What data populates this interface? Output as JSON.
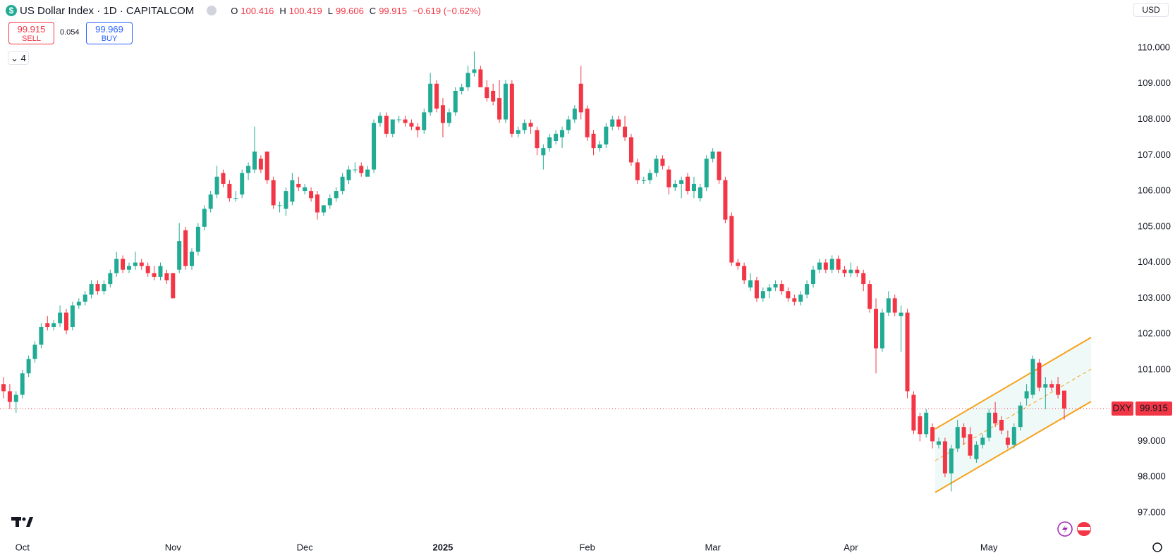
{
  "chart_data": {
    "type": "candlestick",
    "title": "US Dollar Index · 1D · CAPITALCOM",
    "symbol": "DXY",
    "currency": "USD",
    "indicator_count": "4",
    "header": {
      "open_label": "O",
      "open": "100.416",
      "high_label": "H",
      "high": "100.419",
      "low_label": "L",
      "low": "99.606",
      "close_label": "C",
      "close": "99.915",
      "change": "−0.619 (−0.62%)"
    },
    "trade": {
      "sell": 99.915,
      "sell_label": "SELL",
      "spread": 0.054,
      "buy": 99.969,
      "buy_label": "BUY"
    },
    "up_color": "#22ab94",
    "down_color": "#f23645",
    "ylim": [
      96.37,
      111.34
    ],
    "yticks": [
      {
        "value": 97,
        "label": "97.000"
      },
      {
        "value": 98,
        "label": "98.000"
      },
      {
        "value": 99,
        "label": "99.000"
      },
      {
        "value": 100,
        "label": "100.000"
      },
      {
        "value": 101,
        "label": "101.000"
      },
      {
        "value": 102,
        "label": "102.000"
      },
      {
        "value": 103,
        "label": "103.000"
      },
      {
        "value": 104,
        "label": "104.000"
      },
      {
        "value": 105,
        "label": "105.000"
      },
      {
        "value": 106,
        "label": "106.000"
      },
      {
        "value": 107,
        "label": "107.000"
      },
      {
        "value": 108,
        "label": "108.000"
      },
      {
        "value": 109,
        "label": "109.000"
      },
      {
        "value": 110,
        "label": "110.000"
      }
    ],
    "grid": false,
    "categories": [
      null,
      null,
      null,
      "Oct",
      null,
      null,
      null,
      null,
      null,
      null,
      null,
      null,
      null,
      null,
      null,
      null,
      null,
      null,
      null,
      null,
      null,
      null,
      null,
      null,
      null,
      null,
      null,
      "Nov",
      null,
      null,
      null,
      null,
      null,
      null,
      null,
      null,
      null,
      null,
      null,
      null,
      null,
      null,
      null,
      null,
      null,
      null,
      null,
      null,
      "Dec",
      null,
      null,
      null,
      null,
      null,
      null,
      null,
      null,
      null,
      null,
      null,
      null,
      null,
      null,
      null,
      null,
      null,
      null,
      null,
      null,
      null,
      "2025",
      null,
      null,
      null,
      null,
      null,
      null,
      null,
      null,
      null,
      null,
      null,
      null,
      null,
      null,
      null,
      null,
      null,
      null,
      null,
      null,
      null,
      null,
      "Feb",
      null,
      null,
      null,
      null,
      null,
      null,
      null,
      null,
      null,
      null,
      null,
      null,
      null,
      null,
      null,
      null,
      null,
      null,
      null,
      "Mar",
      null,
      null,
      null,
      null,
      null,
      null,
      null,
      null,
      null,
      null,
      null,
      null,
      null,
      null,
      null,
      null,
      null,
      null,
      null,
      null,
      null,
      "Apr",
      null,
      null,
      null,
      null,
      null,
      null,
      null,
      null,
      null,
      null,
      null,
      null,
      null,
      null,
      null,
      null,
      null,
      null,
      null,
      null,
      null,
      "May",
      null,
      null,
      null,
      null,
      null,
      null,
      null,
      null,
      null,
      null,
      null,
      null
    ],
    "ohlc": [
      [
        100.6,
        100.8,
        100.2,
        100.4
      ],
      [
        100.4,
        100.6,
        99.9,
        100.1
      ],
      [
        100.1,
        100.4,
        99.8,
        100.3
      ],
      [
        100.3,
        101.0,
        100.2,
        100.9
      ],
      [
        100.9,
        101.4,
        100.8,
        101.3
      ],
      [
        101.3,
        101.8,
        101.2,
        101.7
      ],
      [
        101.7,
        102.3,
        101.6,
        102.2
      ],
      [
        102.3,
        102.5,
        102.1,
        102.2
      ],
      [
        102.2,
        102.4,
        102.1,
        102.3
      ],
      [
        102.3,
        102.8,
        102.2,
        102.6
      ],
      [
        102.6,
        102.7,
        102.0,
        102.1
      ],
      [
        102.2,
        102.9,
        102.1,
        102.8
      ],
      [
        102.8,
        103.0,
        102.7,
        102.9
      ],
      [
        102.9,
        103.2,
        102.8,
        103.1
      ],
      [
        103.1,
        103.5,
        103.0,
        103.4
      ],
      [
        103.4,
        103.5,
        103.1,
        103.2
      ],
      [
        103.2,
        103.5,
        103.1,
        103.4
      ],
      [
        103.4,
        103.8,
        103.3,
        103.7
      ],
      [
        103.7,
        104.3,
        103.6,
        104.1
      ],
      [
        104.1,
        104.2,
        103.7,
        103.8
      ],
      [
        103.8,
        104.0,
        103.7,
        103.9
      ],
      [
        103.9,
        104.3,
        103.8,
        104.0
      ],
      [
        104.0,
        104.1,
        103.8,
        103.9
      ],
      [
        103.9,
        104.0,
        103.6,
        103.7
      ],
      [
        103.7,
        103.9,
        103.5,
        103.6
      ],
      [
        103.6,
        104.0,
        103.5,
        103.9
      ],
      [
        103.7,
        103.8,
        103.4,
        103.5
      ],
      [
        103.7,
        103.7,
        103.0,
        103.0
      ],
      [
        103.8,
        105.1,
        103.7,
        104.6
      ],
      [
        104.9,
        105.0,
        103.8,
        103.9
      ],
      [
        103.9,
        104.4,
        103.8,
        104.3
      ],
      [
        104.3,
        105.1,
        104.2,
        105.0
      ],
      [
        105.0,
        105.6,
        104.9,
        105.5
      ],
      [
        105.5,
        106.0,
        105.4,
        105.9
      ],
      [
        105.9,
        106.7,
        105.8,
        106.4
      ],
      [
        106.5,
        106.6,
        106.1,
        106.2
      ],
      [
        106.2,
        106.3,
        105.7,
        105.8
      ],
      [
        105.8,
        106.0,
        105.7,
        105.8
      ],
      [
        105.9,
        106.6,
        105.8,
        106.5
      ],
      [
        106.5,
        106.8,
        106.3,
        106.7
      ],
      [
        106.6,
        107.8,
        106.5,
        107.1
      ],
      [
        106.9,
        107.0,
        106.5,
        106.6
      ],
      [
        107.1,
        107.1,
        106.2,
        106.3
      ],
      [
        106.3,
        106.4,
        105.5,
        105.6
      ],
      [
        105.6,
        105.7,
        105.4,
        105.6
      ],
      [
        105.5,
        106.1,
        105.3,
        106.0
      ],
      [
        105.7,
        106.5,
        105.6,
        106.3
      ],
      [
        106.2,
        106.4,
        106.0,
        106.1
      ],
      [
        106.0,
        106.2,
        105.9,
        106.1
      ],
      [
        106.0,
        106.1,
        105.7,
        105.8
      ],
      [
        105.9,
        106.0,
        105.2,
        105.4
      ],
      [
        105.4,
        105.6,
        105.3,
        105.6
      ],
      [
        105.6,
        105.9,
        105.5,
        105.8
      ],
      [
        105.8,
        106.1,
        105.7,
        106.0
      ],
      [
        106.0,
        106.5,
        105.9,
        106.4
      ],
      [
        106.3,
        106.7,
        106.2,
        106.6
      ],
      [
        106.6,
        106.8,
        106.5,
        106.6
      ],
      [
        106.7,
        106.8,
        106.4,
        106.5
      ],
      [
        106.4,
        106.7,
        106.4,
        106.6
      ],
      [
        106.6,
        108.0,
        106.5,
        107.9
      ],
      [
        107.9,
        108.2,
        107.8,
        108.1
      ],
      [
        108.1,
        108.2,
        107.5,
        107.6
      ],
      [
        107.6,
        108.0,
        107.5,
        108.0
      ],
      [
        108.0,
        108.1,
        107.9,
        108.0
      ],
      [
        108.0,
        108.1,
        107.8,
        107.9
      ],
      [
        107.9,
        108.0,
        107.7,
        107.8
      ],
      [
        107.8,
        107.9,
        107.5,
        107.7
      ],
      [
        107.7,
        108.3,
        107.6,
        108.2
      ],
      [
        108.2,
        109.3,
        108.1,
        109.0
      ],
      [
        109.0,
        109.1,
        108.2,
        108.3
      ],
      [
        108.4,
        108.6,
        107.5,
        107.9
      ],
      [
        107.9,
        108.3,
        107.8,
        108.2
      ],
      [
        108.2,
        108.9,
        108.1,
        108.8
      ],
      [
        108.8,
        109.0,
        108.7,
        108.9
      ],
      [
        108.9,
        109.5,
        108.8,
        109.3
      ],
      [
        109.3,
        109.9,
        109.2,
        109.4
      ],
      [
        109.4,
        109.5,
        108.9,
        108.9
      ],
      [
        108.9,
        109.1,
        108.5,
        108.6
      ],
      [
        108.8,
        109.0,
        108.4,
        108.5
      ],
      [
        108.6,
        109.1,
        107.9,
        108.0
      ],
      [
        108.0,
        109.1,
        107.9,
        109.0
      ],
      [
        109.0,
        109.1,
        107.5,
        107.6
      ],
      [
        107.6,
        107.8,
        107.5,
        107.7
      ],
      [
        107.7,
        108.0,
        107.6,
        107.9
      ],
      [
        107.9,
        108.0,
        107.6,
        107.8
      ],
      [
        107.7,
        107.8,
        107.0,
        107.2
      ],
      [
        107.0,
        107.3,
        106.6,
        107.2
      ],
      [
        107.2,
        107.6,
        107.1,
        107.5
      ],
      [
        107.4,
        107.7,
        107.3,
        107.6
      ],
      [
        107.5,
        107.8,
        107.2,
        107.7
      ],
      [
        107.7,
        108.1,
        107.6,
        108.0
      ],
      [
        108.0,
        108.4,
        107.9,
        108.3
      ],
      [
        109.0,
        109.5,
        108.0,
        108.2
      ],
      [
        108.3,
        108.4,
        107.4,
        107.5
      ],
      [
        107.6,
        107.7,
        107.0,
        107.2
      ],
      [
        107.2,
        107.4,
        107.1,
        107.3
      ],
      [
        107.3,
        107.9,
        107.2,
        107.8
      ],
      [
        107.8,
        108.1,
        107.7,
        108.0
      ],
      [
        108.0,
        108.1,
        107.7,
        107.8
      ],
      [
        107.8,
        108.1,
        107.4,
        107.5
      ],
      [
        107.5,
        107.6,
        106.7,
        106.8
      ],
      [
        106.8,
        106.9,
        106.2,
        106.3
      ],
      [
        106.3,
        106.4,
        106.2,
        106.3
      ],
      [
        106.3,
        106.6,
        106.2,
        106.5
      ],
      [
        106.5,
        107.0,
        106.4,
        106.9
      ],
      [
        106.9,
        107.0,
        106.6,
        106.7
      ],
      [
        106.6,
        106.7,
        105.9,
        106.1
      ],
      [
        106.1,
        106.3,
        106.0,
        106.2
      ],
      [
        106.2,
        106.4,
        105.8,
        106.3
      ],
      [
        106.4,
        106.5,
        105.9,
        106.0
      ],
      [
        106.0,
        106.4,
        105.8,
        106.2
      ],
      [
        105.8,
        106.2,
        105.7,
        106.1
      ],
      [
        106.1,
        107.0,
        106.0,
        106.9
      ],
      [
        106.9,
        107.2,
        106.8,
        107.1
      ],
      [
        107.1,
        107.1,
        106.2,
        106.3
      ],
      [
        106.3,
        106.4,
        105.1,
        105.2
      ],
      [
        105.3,
        105.4,
        103.9,
        104.0
      ],
      [
        104.0,
        104.1,
        103.8,
        103.9
      ],
      [
        103.9,
        104.0,
        103.4,
        103.5
      ],
      [
        103.3,
        103.7,
        103.2,
        103.5
      ],
      [
        103.5,
        103.6,
        102.9,
        103.0
      ],
      [
        103.0,
        103.3,
        102.9,
        103.2
      ],
      [
        103.2,
        103.4,
        103.0,
        103.3
      ],
      [
        103.3,
        103.5,
        103.2,
        103.4
      ],
      [
        103.4,
        103.5,
        103.1,
        103.2
      ],
      [
        103.2,
        103.3,
        102.9,
        103.0
      ],
      [
        103.0,
        103.1,
        102.8,
        102.9
      ],
      [
        102.9,
        103.2,
        102.8,
        103.1
      ],
      [
        103.1,
        103.5,
        103.0,
        103.4
      ],
      [
        103.4,
        103.9,
        103.3,
        103.8
      ],
      [
        103.8,
        104.1,
        103.7,
        104.0
      ],
      [
        104.0,
        104.1,
        103.7,
        103.8
      ],
      [
        103.8,
        104.2,
        103.7,
        104.1
      ],
      [
        104.1,
        104.2,
        103.7,
        103.8
      ],
      [
        103.8,
        103.9,
        103.6,
        103.7
      ],
      [
        103.7,
        104.0,
        103.6,
        103.8
      ],
      [
        103.8,
        103.9,
        103.6,
        103.7
      ],
      [
        103.7,
        103.8,
        103.2,
        103.4
      ],
      [
        103.4,
        103.5,
        102.6,
        102.7
      ],
      [
        102.7,
        103.0,
        100.9,
        101.6
      ],
      [
        101.6,
        102.7,
        101.5,
        102.6
      ],
      [
        102.6,
        103.2,
        102.5,
        103.0
      ],
      [
        103.0,
        103.1,
        102.5,
        102.6
      ],
      [
        102.5,
        102.8,
        101.5,
        102.6
      ],
      [
        102.6,
        102.7,
        100.2,
        100.4
      ],
      [
        100.3,
        100.4,
        99.2,
        99.3
      ],
      [
        99.7,
        99.8,
        99.0,
        99.2
      ],
      [
        99.2,
        99.9,
        99.1,
        99.8
      ],
      [
        99.4,
        99.5,
        98.8,
        99.0
      ],
      [
        98.9,
        99.1,
        98.8,
        99.0
      ],
      [
        99.0,
        99.1,
        98.0,
        98.1
      ],
      [
        98.1,
        98.9,
        97.6,
        98.8
      ],
      [
        98.8,
        99.6,
        98.7,
        99.4
      ],
      [
        99.4,
        99.5,
        98.9,
        99.1
      ],
      [
        99.2,
        99.4,
        98.5,
        98.6
      ],
      [
        98.5,
        99.0,
        98.4,
        98.9
      ],
      [
        98.9,
        99.2,
        98.8,
        99.1
      ],
      [
        99.1,
        99.9,
        99.0,
        99.8
      ],
      [
        99.8,
        100.1,
        99.4,
        99.5
      ],
      [
        99.6,
        99.7,
        99.2,
        99.3
      ],
      [
        99.1,
        99.3,
        98.8,
        98.9
      ],
      [
        98.9,
        99.5,
        98.8,
        99.4
      ],
      [
        99.4,
        100.1,
        99.3,
        100.0
      ],
      [
        100.2,
        100.6,
        100.0,
        100.4
      ],
      [
        100.3,
        101.4,
        100.2,
        101.3
      ],
      [
        101.2,
        101.3,
        100.4,
        100.5
      ],
      [
        100.5,
        100.8,
        99.9,
        100.6
      ],
      [
        100.6,
        100.7,
        100.4,
        100.5
      ],
      [
        100.6,
        100.8,
        100.2,
        100.3
      ],
      [
        100.416,
        100.419,
        99.606,
        99.915
      ]
    ]
  }
}
